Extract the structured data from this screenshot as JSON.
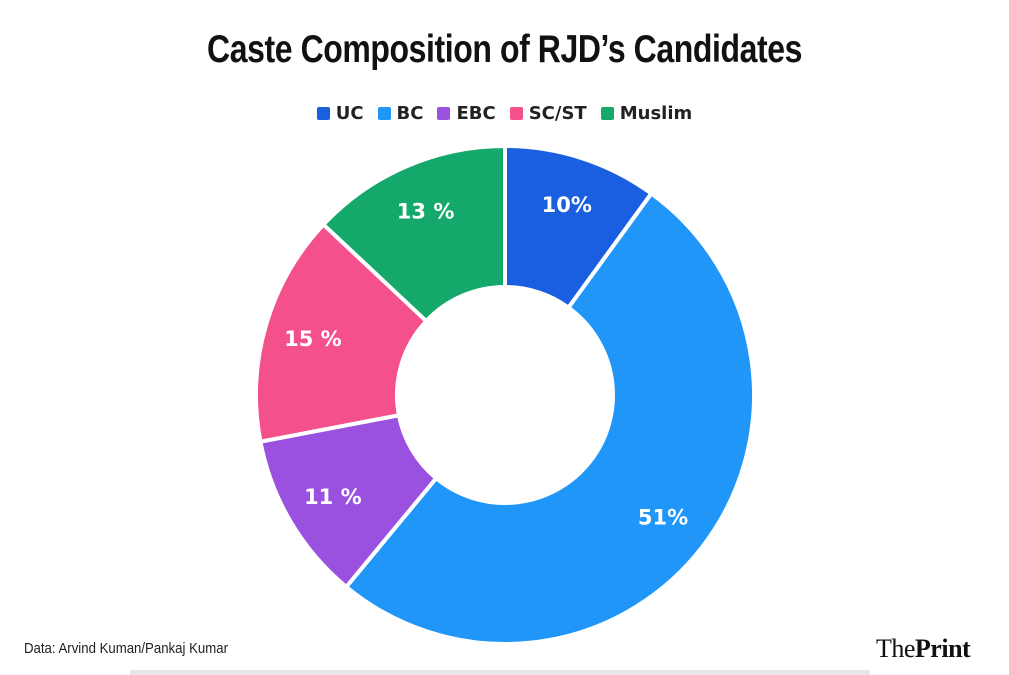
{
  "chart_data": {
    "type": "pie",
    "donut": true,
    "title": "Caste Composition of RJD’s Candidates",
    "legend_position": "top",
    "slices": [
      {
        "name": "UC",
        "value": 10,
        "label": "10%",
        "color": "#1a5fe0"
      },
      {
        "name": "BC",
        "value": 51,
        "label": "51%",
        "color": "#2196f9"
      },
      {
        "name": "EBC",
        "value": 11,
        "label": "11 %",
        "color": "#9b51e0"
      },
      {
        "name": "SC/ST",
        "value": 15,
        "label": "15 %",
        "color": "#f4508b"
      },
      {
        "name": "Muslim",
        "value": 13,
        "label": "13 %",
        "color": "#14a86a"
      }
    ]
  },
  "legend": [
    "UC",
    "BC",
    "EBC",
    "SC/ST",
    "Muslim"
  ],
  "source": "Data: Arvind Kuman/Pankaj Kumar",
  "brand": {
    "part1": "The",
    "part2": "Print"
  }
}
